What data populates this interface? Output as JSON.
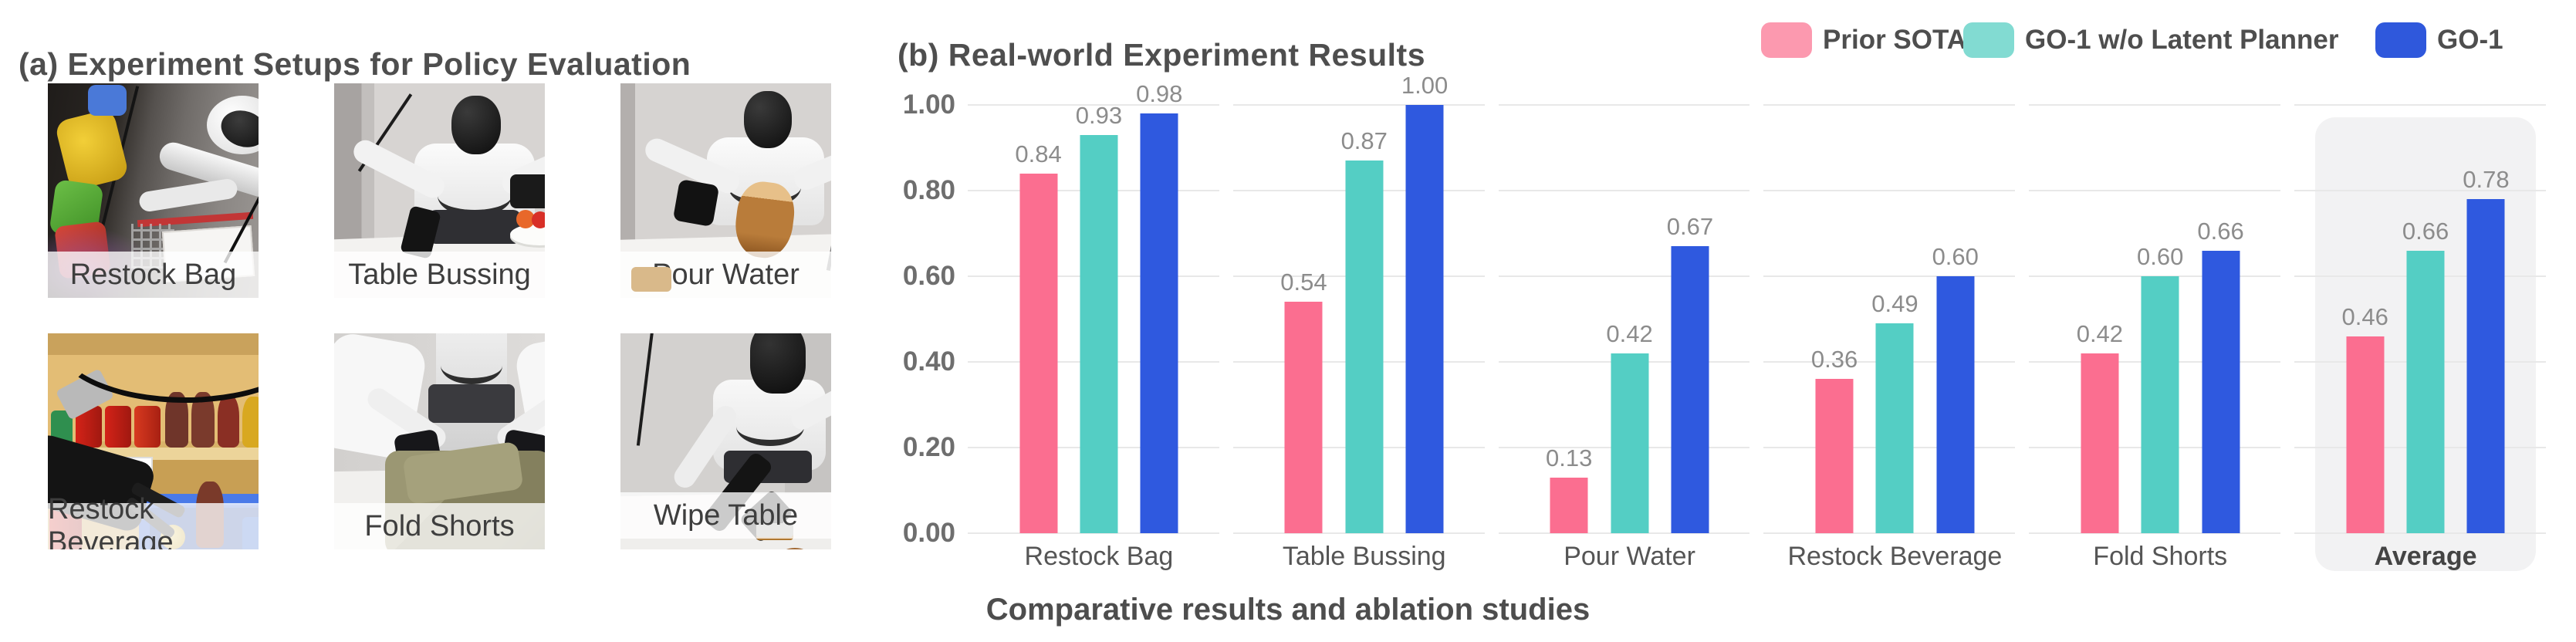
{
  "panel_a": {
    "title": "(a) Experiment Setups for Policy Evaluation",
    "photos": [
      {
        "label": "Restock Bag"
      },
      {
        "label": "Table Bussing"
      },
      {
        "label": "Pour Water"
      },
      {
        "label": "Restock Beverage"
      },
      {
        "label": "Fold Shorts"
      },
      {
        "label": "Wipe Table"
      }
    ]
  },
  "panel_b": {
    "title": "(b) Real-world Experiment Results",
    "caption": "Comparative results and ablation studies",
    "legend": [
      {
        "label": "Prior SOTA",
        "swatch_color": "#FC99AF"
      },
      {
        "label": "GO-1 w/o Latent Planner",
        "swatch_color": "#82DBD2"
      },
      {
        "label": "GO-1",
        "swatch_color": "#2F58DC"
      }
    ]
  },
  "chart_data": {
    "type": "bar",
    "title": "(b) Real-world Experiment Results",
    "categories": [
      "Restock Bag",
      "Table Bussing",
      "Pour Water",
      "Restock Beverage",
      "Fold Shorts",
      "Average"
    ],
    "series": [
      {
        "name": "Prior SOTA",
        "color": "#FB6E90",
        "values": [
          0.84,
          0.54,
          0.13,
          0.36,
          0.42,
          0.46
        ]
      },
      {
        "name": "GO-1 w/o Latent Planner",
        "color": "#54CEC4",
        "values": [
          0.93,
          0.87,
          0.42,
          0.49,
          0.6,
          0.66
        ]
      },
      {
        "name": "GO-1",
        "color": "#2F59DF",
        "values": [
          0.98,
          1.0,
          0.67,
          0.6,
          0.66,
          0.78
        ]
      }
    ],
    "xlabel": "",
    "ylabel": "",
    "ylim": [
      0,
      1.0
    ],
    "yticks": [
      0.0,
      0.2,
      0.4,
      0.6,
      0.8,
      1.0
    ],
    "ytick_labels": [
      "0.00",
      "0.20",
      "0.40",
      "0.60",
      "0.80",
      "1.00"
    ],
    "grid": "horizontal-segmented",
    "legend_position": "top-right",
    "highlight_category": "Average",
    "highlight_color": "#f2f2f3"
  }
}
